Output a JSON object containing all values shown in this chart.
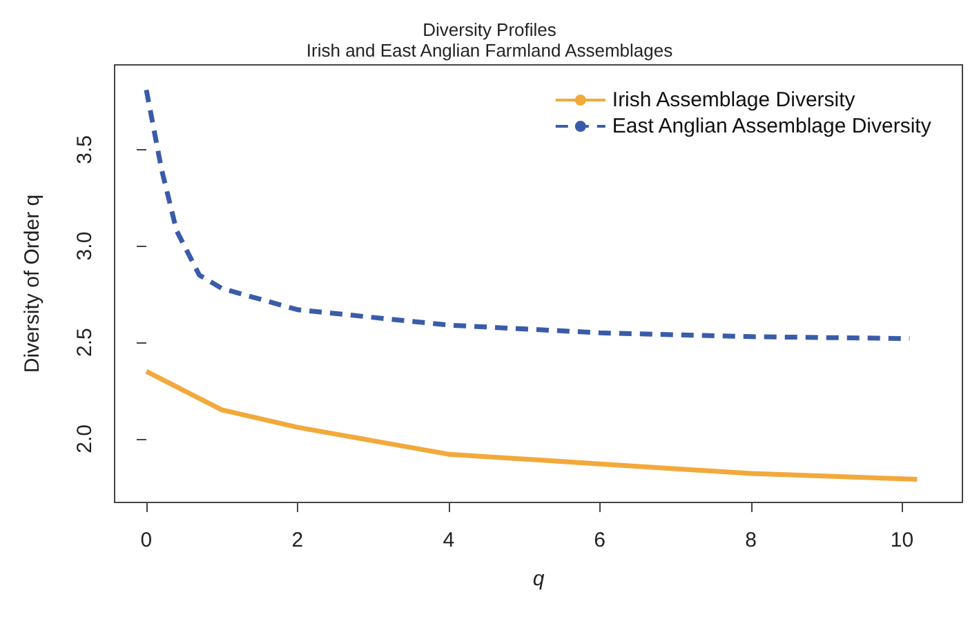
{
  "chart_data": {
    "type": "line",
    "title": "Diversity Profiles",
    "subtitle": "Irish and East Anglian Farmland Assemblages",
    "xlabel": "q",
    "ylabel": "Diversity of Order q",
    "xlim": [
      -0.42,
      10.8
    ],
    "xticks": [
      0,
      2,
      4,
      6,
      8,
      10
    ],
    "ylim": [
      1.67,
      3.94
    ],
    "yticks": [
      {
        "value": 2,
        "label": "2.0"
      },
      {
        "value": 2.5,
        "label": "2.5"
      },
      {
        "value": 3,
        "label": "3.0"
      },
      {
        "value": 3.5,
        "label": "3.5"
      }
    ],
    "grid": false,
    "legend": "top right",
    "marker": "none",
    "series": [
      {
        "name": "Irish Assemblage Diversity",
        "color": "#f2a93b",
        "line_style": "solid",
        "x": [
          0,
          0.5,
          1,
          2,
          3,
          4,
          6,
          8,
          10.2
        ],
        "values": [
          2.35,
          2.25,
          2.15,
          2.06,
          1.99,
          1.92,
          1.87,
          1.82,
          1.79
        ]
      },
      {
        "name": "East Anglian Assemblage Diversity",
        "color": "#3a5ca8",
        "line_style": "dashed",
        "x": [
          0,
          0.2,
          0.4,
          0.7,
          1,
          2,
          4,
          6,
          8,
          10.1
        ],
        "values": [
          3.81,
          3.4,
          3.08,
          2.85,
          2.78,
          2.67,
          2.59,
          2.55,
          2.53,
          2.52
        ]
      }
    ]
  }
}
